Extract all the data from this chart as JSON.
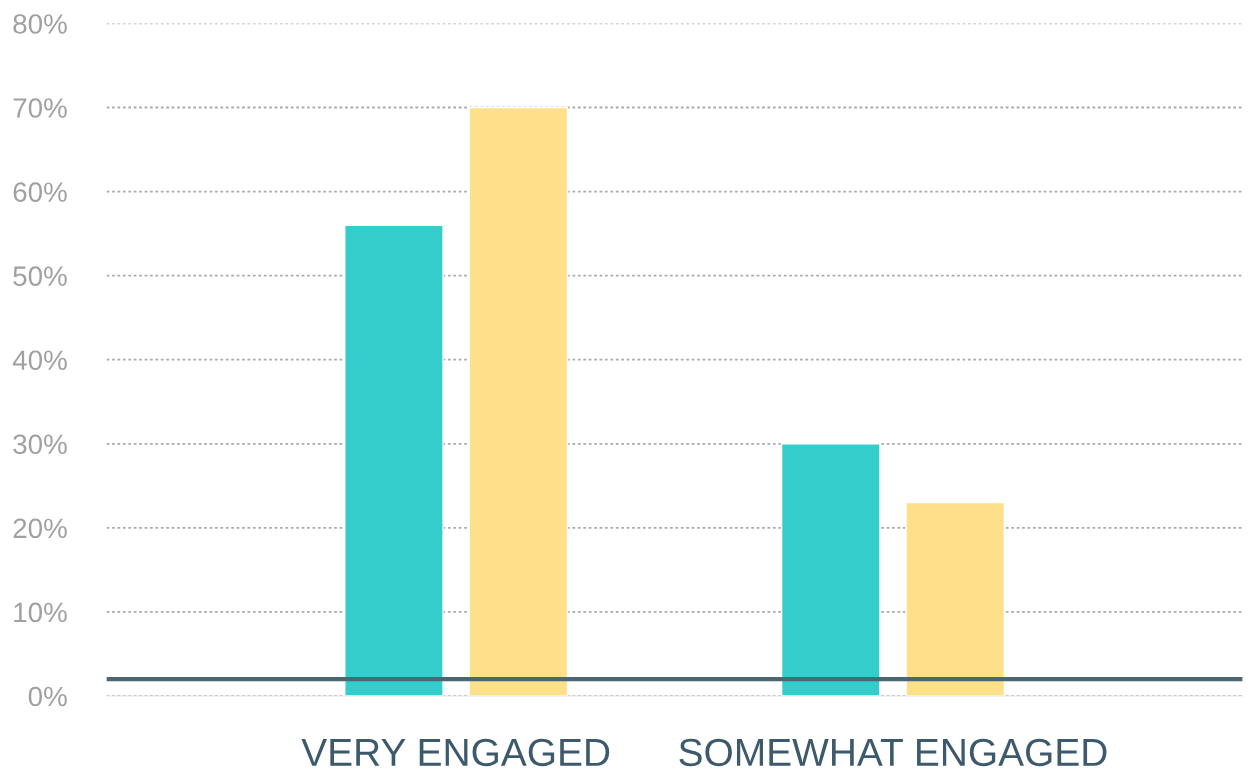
{
  "chart_data": {
    "type": "bar",
    "categories": [
      "VERY ENGAGED",
      "SOMEWHAT ENGAGED"
    ],
    "series": [
      {
        "color": "#33cecc",
        "values": [
          56,
          30
        ]
      },
      {
        "color": "#fedf8a",
        "values": [
          70,
          23
        ]
      }
    ],
    "ylim": [
      0,
      80
    ],
    "yticks": [
      {
        "value": 0,
        "label": "0%"
      },
      {
        "value": 10,
        "label": "10%"
      },
      {
        "value": 20,
        "label": "20%"
      },
      {
        "value": 30,
        "label": "30%"
      },
      {
        "value": 40,
        "label": "40%"
      },
      {
        "value": 50,
        "label": "50%"
      },
      {
        "value": 60,
        "label": "60%"
      },
      {
        "value": 70,
        "label": "70%"
      },
      {
        "value": 80,
        "label": "80%"
      }
    ],
    "grid": "y",
    "ref_lines": [
      {
        "axis": "y",
        "value": 2,
        "color": "#4a6774",
        "line_style": "solid"
      }
    ]
  }
}
